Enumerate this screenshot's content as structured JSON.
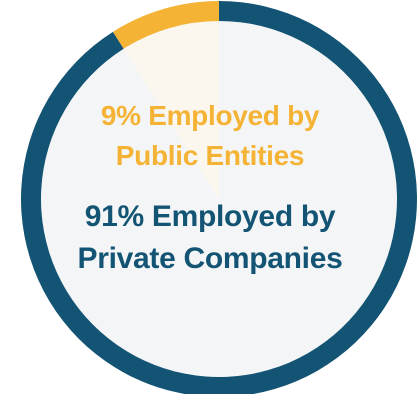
{
  "chart_data": {
    "type": "pie",
    "style": "donut",
    "slices": [
      {
        "label": "Public Entities",
        "value": 9,
        "color": "#f5b335",
        "inner_color": "#fbf7ee"
      },
      {
        "label": "Private Companies",
        "value": 91,
        "color": "#135474",
        "inner_color": "#f3f5f6"
      }
    ],
    "annotations": {
      "public_line1": "9% Employed by",
      "public_line2": "Public Entities",
      "private_line1": "91% Employed by",
      "private_line2": "Private Companies"
    }
  }
}
